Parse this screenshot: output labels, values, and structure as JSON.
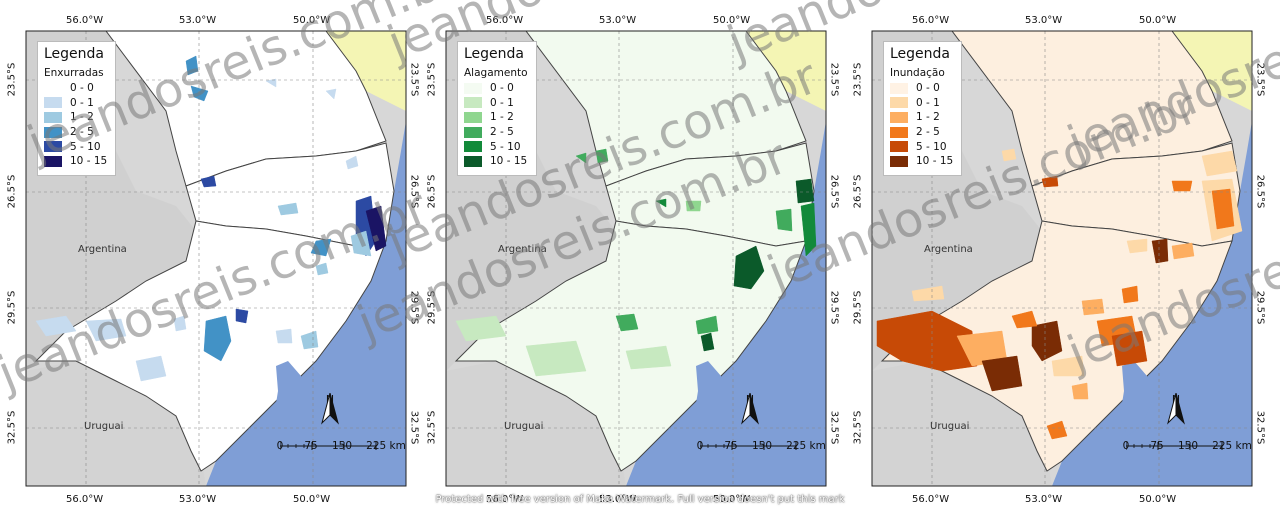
{
  "map": {
    "x_ticks": [
      "56.0°W",
      "53.0°W",
      "50.0°W"
    ],
    "y_ticks": [
      "23.5°S",
      "26.5°S",
      "29.5°S",
      "32.5°S"
    ],
    "country_labels": [
      "Argentina",
      "Uruguai"
    ],
    "scale_ticks": [
      "0",
      "75",
      "150",
      "225 km"
    ],
    "north_label": "N",
    "colors": {
      "ocean": "#7f9ed6",
      "neighbor_land": "#d7d7d7",
      "north_state": "#f4f5b4"
    }
  },
  "panels": [
    {
      "legend_title": "Legenda",
      "legend_subtitle": "Enxurradas",
      "classes": [
        {
          "label": "0 - 0",
          "color": "#ffffff"
        },
        {
          "label": "0 - 1",
          "color": "#c6dbef"
        },
        {
          "label": "1 - 2",
          "color": "#9ecae1"
        },
        {
          "label": "2 - 5",
          "color": "#4292c6"
        },
        {
          "label": "5 - 10",
          "color": "#2c4aa3"
        },
        {
          "label": "10 - 15",
          "color": "#1a1464"
        }
      ],
      "land": "#ffffff"
    },
    {
      "legend_title": "Legenda",
      "legend_subtitle": "Alagamento",
      "classes": [
        {
          "label": "0 - 0",
          "color": "#f4fbf2"
        },
        {
          "label": "0 - 1",
          "color": "#c7e9c0"
        },
        {
          "label": "1 - 2",
          "color": "#8fd68f"
        },
        {
          "label": "2 - 5",
          "color": "#41ab5d"
        },
        {
          "label": "5 - 10",
          "color": "#128a3a"
        },
        {
          "label": "10 - 15",
          "color": "#0b5a2a"
        }
      ],
      "land": "#f2faef"
    },
    {
      "legend_title": "Legenda",
      "legend_subtitle": "Inundação",
      "classes": [
        {
          "label": "0 - 0",
          "color": "#fff2e4"
        },
        {
          "label": "0 - 1",
          "color": "#fdd9a8"
        },
        {
          "label": "1 - 2",
          "color": "#fdae61"
        },
        {
          "label": "2 - 5",
          "color": "#f1781b"
        },
        {
          "label": "5 - 10",
          "color": "#c74a06"
        },
        {
          "label": "10 - 15",
          "color": "#7a2c05"
        }
      ],
      "land": "#fdefdf"
    }
  ],
  "watermark_text": "jeandosreis.com.br",
  "footer_note": "Protected with free version of Make Watermark. Full version doesn't put this mark"
}
